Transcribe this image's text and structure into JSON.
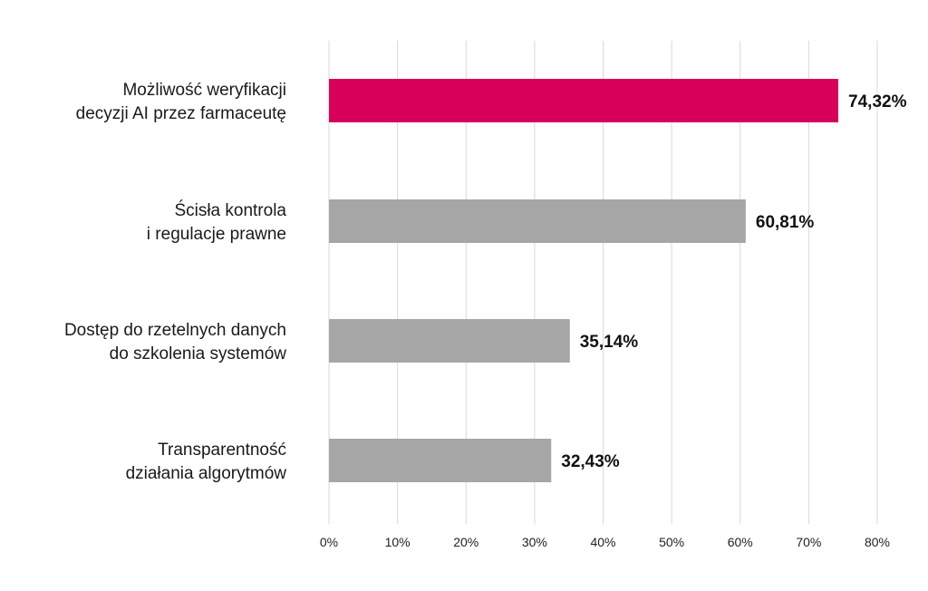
{
  "chart_data": {
    "type": "bar",
    "orientation": "horizontal",
    "categories": [
      [
        "Możliwość weryfikacji",
        "decyzji AI przez farmaceutę"
      ],
      [
        "Ścisła kontrola",
        "i regulacje prawne"
      ],
      [
        "Dostęp do rzetelnych danych",
        "do szkolenia systemów"
      ],
      [
        "Transparentność",
        "działania algorytmów"
      ]
    ],
    "values": [
      74.32,
      60.81,
      35.14,
      32.43
    ],
    "value_labels": [
      "74,32%",
      "60,81%",
      "35,14%",
      "32,43%"
    ],
    "highlight_index": 0,
    "colors": {
      "highlight": "#d9005b",
      "default": "#a6a6a6",
      "grid": "#d9d9d9"
    },
    "xlim": [
      0,
      80
    ],
    "ticks": [
      0,
      10,
      20,
      30,
      40,
      50,
      60,
      70,
      80
    ],
    "tick_labels": [
      "0%",
      "10%",
      "20%",
      "30%",
      "40%",
      "50%",
      "60%",
      "70%",
      "80%"
    ],
    "grid": true,
    "legend": "none"
  }
}
